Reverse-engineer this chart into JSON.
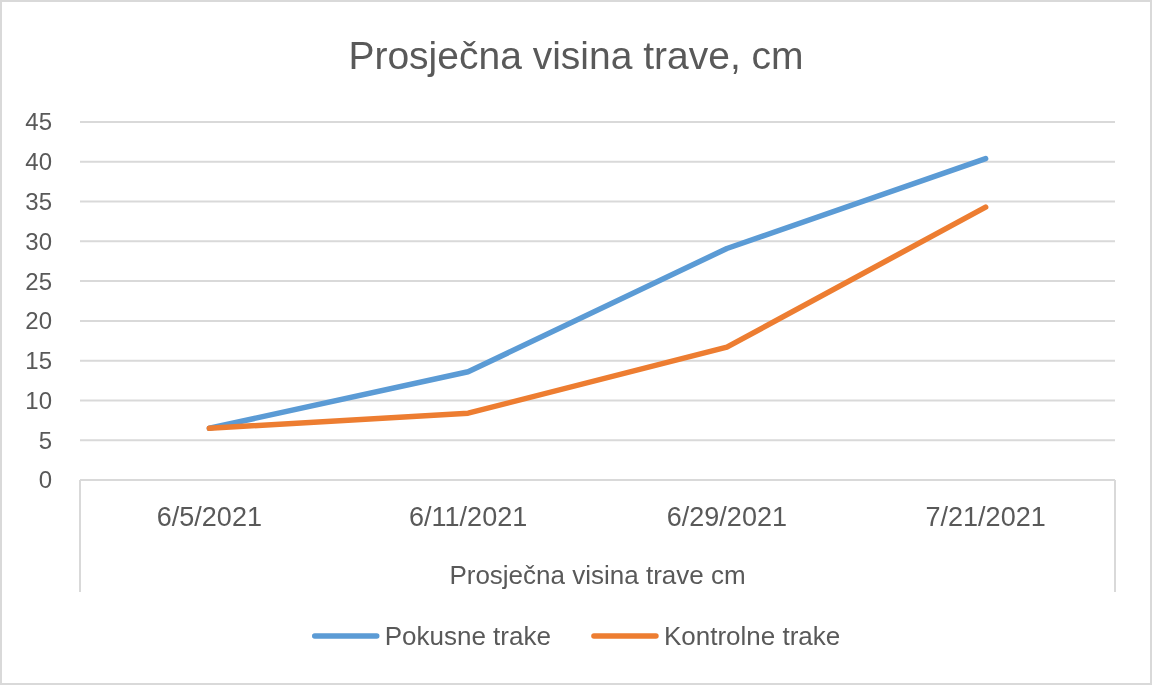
{
  "chart_data": {
    "type": "line",
    "title": "Prosječna visina trave, cm",
    "xlabel": "Prosječna visina trave cm",
    "categories": [
      "6/5/2021",
      "6/11/2021",
      "6/29/2021",
      "7/21/2021"
    ],
    "series": [
      {
        "name": "Pokusne trake",
        "color": "#5b9bd5",
        "values": [
          6.5,
          13.6,
          29.1,
          40.4
        ]
      },
      {
        "name": "Kontrolne trake",
        "color": "#ed7d31",
        "values": [
          6.5,
          8.4,
          16.7,
          34.3
        ]
      }
    ],
    "ylim": [
      0,
      45
    ],
    "yticks": [
      0,
      5,
      10,
      15,
      20,
      25,
      30,
      35,
      40,
      45
    ],
    "grid": "y",
    "legend": "bottom",
    "marker": "none",
    "line_style": "solid"
  }
}
